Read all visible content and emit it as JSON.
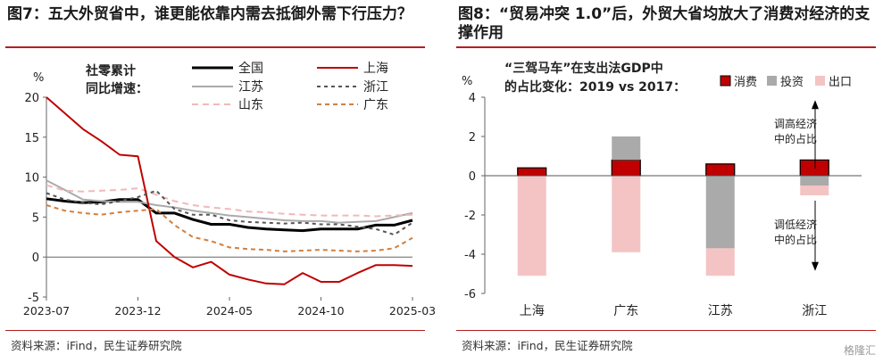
{
  "left": {
    "title": "图7：五大外贸省中，谁更能依靠内需去抵御外需下行压力？",
    "source": "资料来源：iFind，民生证券研究院",
    "legend_caption": [
      "社零累计",
      "同比增速："
    ],
    "y_unit": "%",
    "chart_data": {
      "type": "line",
      "x": [
        "2023-07",
        "2023-08",
        "2023-09",
        "2023-10",
        "2023-11",
        "2023-12",
        "2024-01",
        "2024-02",
        "2024-03",
        "2024-04",
        "2024-05",
        "2024-06",
        "2024-07",
        "2024-08",
        "2024-09",
        "2024-10",
        "2024-11",
        "2024-12",
        "2025-01",
        "2025-02",
        "2025-03"
      ],
      "x_tick_labels": [
        "2023-07",
        "2023-12",
        "2024-05",
        "2024-10",
        "2025-03"
      ],
      "ylim": [
        -5,
        20
      ],
      "y_ticks": [
        -5,
        0,
        5,
        10,
        15,
        20
      ],
      "series": [
        {
          "name": "全国",
          "color": "#000000",
          "dash": "",
          "width": 3,
          "values": [
            7.3,
            7.0,
            6.8,
            6.9,
            7.2,
            7.2,
            5.5,
            5.5,
            4.7,
            4.1,
            4.1,
            3.7,
            3.5,
            3.4,
            3.3,
            3.5,
            3.5,
            3.5,
            4.0,
            4.0,
            4.6
          ]
        },
        {
          "name": "江苏",
          "color": "#aaaaaa",
          "dash": "",
          "width": 2,
          "values": [
            9.6,
            8.4,
            7.2,
            7.0,
            6.9,
            6.9,
            6.5,
            6.2,
            5.8,
            5.5,
            5.2,
            5.0,
            4.8,
            4.6,
            4.5,
            4.5,
            4.3,
            4.4,
            4.5,
            5.0,
            5.5
          ]
        },
        {
          "name": "山东",
          "color": "#f2b8b8",
          "dash": "7,5",
          "width": 2,
          "values": [
            9.0,
            8.3,
            8.2,
            8.3,
            8.4,
            8.6,
            7.8,
            7.0,
            6.5,
            6.2,
            6.0,
            5.7,
            5.6,
            5.4,
            5.3,
            5.2,
            5.2,
            5.2,
            5.1,
            5.2,
            5.3
          ]
        },
        {
          "name": "上海",
          "color": "#c00000",
          "dash": "",
          "width": 2,
          "values": [
            20.0,
            18.0,
            16.0,
            14.5,
            12.8,
            12.6,
            2.0,
            0.0,
            -1.3,
            -0.6,
            -2.2,
            -2.8,
            -3.3,
            -3.4,
            -2.0,
            -3.1,
            -3.1,
            -2.0,
            -1.0,
            -1.0,
            -1.1
          ]
        },
        {
          "name": "浙江",
          "color": "#555555",
          "dash": "4,4",
          "width": 2,
          "values": [
            8.0,
            7.2,
            6.8,
            6.6,
            7.0,
            7.5,
            8.3,
            6.0,
            5.3,
            5.3,
            4.6,
            4.4,
            4.3,
            4.2,
            4.3,
            4.1,
            4.1,
            3.8,
            3.5,
            2.8,
            4.3
          ]
        },
        {
          "name": "广东",
          "color": "#d08040",
          "dash": "5,4",
          "width": 2,
          "values": [
            6.5,
            5.8,
            5.5,
            5.3,
            5.6,
            5.8,
            6.0,
            4.0,
            2.5,
            2.0,
            1.2,
            1.0,
            0.9,
            0.7,
            0.8,
            0.9,
            0.8,
            0.7,
            0.8,
            1.1,
            2.4
          ]
        }
      ]
    }
  },
  "right": {
    "title": "图8：“贸易冲突 1.0”后，外贸大省均放大了消费对经济的支撑作用",
    "source": "资料来源：iFind，民生证券研究院",
    "subtitle": [
      "“三驾马车”在支出法GDP中",
      "的占比变化：2019 vs 2017："
    ],
    "y_unit": "%",
    "annotation_up": [
      "调高经济",
      "中的占比"
    ],
    "annotation_down": [
      "调低经济",
      "中的占比"
    ],
    "watermark": "格隆汇",
    "chart_data": {
      "type": "bar",
      "stacked": true,
      "categories": [
        "上海",
        "广东",
        "江苏",
        "浙江"
      ],
      "ylim": [
        -6,
        4
      ],
      "y_ticks": [
        -6,
        -4,
        -2,
        0,
        2,
        4
      ],
      "series": [
        {
          "name": "消费",
          "color": "#c00000",
          "values": [
            0.4,
            0.8,
            0.6,
            0.8
          ]
        },
        {
          "name": "投资",
          "color": "#aaaaaa",
          "values": [
            0.0,
            1.2,
            -3.7,
            -0.5
          ]
        },
        {
          "name": "出口",
          "color": "#f4c4c4",
          "values": [
            -5.1,
            -3.9,
            -1.4,
            -0.5
          ]
        }
      ]
    }
  }
}
